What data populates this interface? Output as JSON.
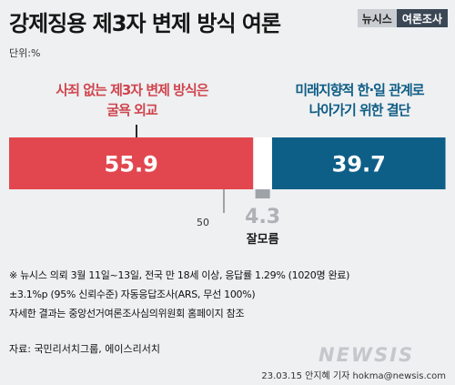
{
  "header": {
    "title": "강제징용 제3자 변제 방식 여론",
    "badge_left": "뉴시스",
    "badge_right": "여론조사",
    "unit": "단위:%"
  },
  "chart_data": {
    "type": "bar",
    "orientation": "horizontal-stacked",
    "categories": [
      "사죄 없는 제3자 변제 방식은 굴욕 외교",
      "잘모름",
      "미래지향적 한·일 관계로 나아가기 위한 결단"
    ],
    "values": [
      55.9,
      4.3,
      39.7
    ],
    "labels": {
      "left": [
        "사죄 없는 제3자 변제 방식은",
        "굴욕 외교"
      ],
      "right": [
        "미래지향적 한·일 관계로",
        "나아가기 위한 결단"
      ],
      "dontknow": "잘모름"
    },
    "value_text": {
      "left": "55.9",
      "middle": "4.3",
      "right": "39.7"
    },
    "midline_label": "50",
    "xlim": [
      0,
      100
    ],
    "colors": {
      "left": "#e2474f",
      "middle": "#ffffff",
      "right": "#0e5f88"
    }
  },
  "footnote": {
    "line1": "※ 뉴시스 의뢰 3월 11일~13일, 전국 만 18세 이상, 응답률 1.29% (1020명 완료)",
    "line2": "±3.1%p (95% 신뢰수준) 자동응답조사(ARS, 무선 100%)",
    "line3": "자세한 결과는 중앙선거여론조사심의위원회 홈페이지 참조"
  },
  "source": "자료: 국민리서치그룹, 에이스리서치",
  "logo": "NEWSIS",
  "credit": "23.03.15 안지혜 기자 hokma@newsis.com"
}
